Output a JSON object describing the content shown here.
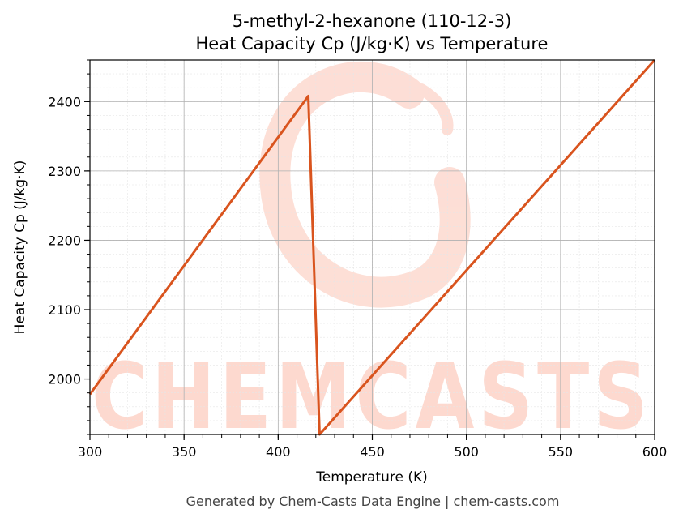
{
  "chart_data": {
    "type": "line",
    "title": "5-methyl-2-hexanone (110-12-3)",
    "subtitle": "Heat Capacity Cp (J/kg·K) vs Temperature",
    "xlabel": "Temperature (K)",
    "ylabel": "Heat Capacity Cp (J/kg·K)",
    "xlim": [
      300,
      600
    ],
    "ylim": [
      1920,
      2460
    ],
    "xticks": [
      300,
      350,
      400,
      450,
      500,
      550,
      600
    ],
    "yticks": [
      2000,
      2100,
      2200,
      2300,
      2400
    ],
    "grid": true,
    "line_color": "#d9541e",
    "series": [
      {
        "name": "",
        "x": [
          300,
          416,
          422,
          600
        ],
        "y": [
          1978,
          2408,
          1920,
          2460
        ]
      }
    ]
  },
  "watermark": {
    "text": "CHEMCASTS",
    "color": "#fdd9cf"
  },
  "footer": "Generated by Chem-Casts Data Engine | chem-casts.com"
}
